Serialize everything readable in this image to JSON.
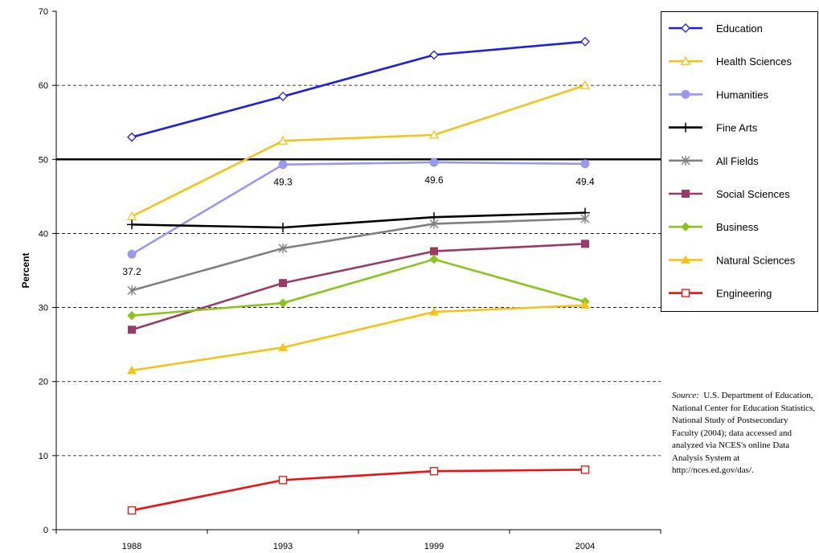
{
  "chart_data": {
    "type": "line",
    "title": "",
    "xlabel": "",
    "ylabel": "Percent",
    "ylim": [
      0,
      70
    ],
    "yticks": [
      "0",
      "10",
      "20",
      "30",
      "40",
      "50",
      "60",
      "70"
    ],
    "categories": [
      "1988",
      "1993",
      "1999",
      "2004"
    ],
    "grid": "horizontal dashed at 10-unit intervals",
    "reference_line": {
      "value": 50,
      "color": "#000000"
    },
    "legend_position": "right",
    "series": [
      {
        "name": "Education",
        "values": [
          53.0,
          58.5,
          64.1,
          65.9
        ],
        "color": "#1f1fe0",
        "marker": "diamond-open"
      },
      {
        "name": "Health Sciences",
        "values": [
          42.3,
          52.5,
          53.3,
          60.0
        ],
        "color": "#f5c218",
        "marker": "triangle-open"
      },
      {
        "name": "Humanities",
        "values": [
          37.2,
          49.3,
          49.6,
          49.4
        ],
        "color": "#9898ee",
        "marker": "circle-filled"
      },
      {
        "name": "Fine Arts",
        "values": [
          41.2,
          40.8,
          42.2,
          42.8
        ],
        "color": "#000000",
        "marker": "plus"
      },
      {
        "name": "All Fields",
        "values": [
          32.3,
          38.0,
          41.3,
          42.0
        ],
        "color": "#808080",
        "marker": "star"
      },
      {
        "name": "Social Sciences",
        "values": [
          27.0,
          33.3,
          37.6,
          38.6
        ],
        "color": "#9a3a68",
        "marker": "square-filled"
      },
      {
        "name": "Business",
        "values": [
          28.9,
          30.6,
          36.5,
          30.8
        ],
        "color": "#8cc31c",
        "marker": "diamond-filled"
      },
      {
        "name": "Natural Sciences",
        "values": [
          21.5,
          24.6,
          29.4,
          30.3
        ],
        "color": "#f5c218",
        "marker": "triangle-filled"
      },
      {
        "name": "Engineering",
        "values": [
          2.6,
          6.7,
          7.9,
          8.1
        ],
        "color": "#ee1111",
        "marker": "square-open"
      }
    ],
    "data_labels": [
      {
        "series": "Humanities",
        "category": "1988",
        "text": "37.2"
      },
      {
        "series": "Humanities",
        "category": "1993",
        "text": "49.3"
      },
      {
        "series": "Humanities",
        "category": "1999",
        "text": "49.6"
      },
      {
        "series": "Humanities",
        "category": "2004",
        "text": "49.4"
      }
    ]
  },
  "source_note": {
    "label": "Source:",
    "text": "U.S. Department of Education, National Center for Education Statistics, National Study of Postsecondary Faculty (2004); data accessed and analyzed via NCES's online Data Analysis System at http://nces.ed.gov/das/."
  }
}
